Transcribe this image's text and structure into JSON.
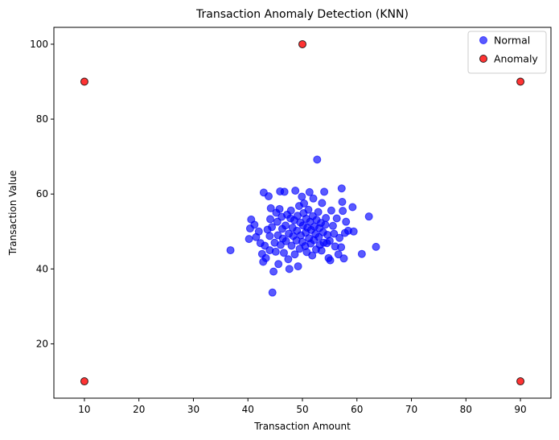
{
  "chart_data": {
    "type": "scatter",
    "title": "Transaction Anomaly Detection (KNN)",
    "xlabel": "Transaction Amount",
    "ylabel": "Transaction Value",
    "xlim": [
      4.4,
      95.6
    ],
    "ylim": [
      5.5,
      104.5
    ],
    "xticks": [
      10,
      20,
      30,
      40,
      50,
      60,
      70,
      80,
      90
    ],
    "yticks": [
      20,
      40,
      60,
      80,
      100
    ],
    "grid": false,
    "legend_position": "top-right",
    "series": [
      {
        "name": "Normal",
        "color": "#0000ff",
        "edge_color": "#0000ff",
        "opacity": 0.65,
        "points": [
          [
            36.8,
            45.0
          ],
          [
            40.2,
            48.0
          ],
          [
            40.4,
            50.8
          ],
          [
            40.6,
            53.2
          ],
          [
            41.2,
            51.8
          ],
          [
            41.5,
            48.5
          ],
          [
            42.0,
            50.0
          ],
          [
            42.3,
            46.9
          ],
          [
            42.6,
            44.0
          ],
          [
            42.8,
            41.9
          ],
          [
            42.9,
            60.4
          ],
          [
            43.1,
            46.2
          ],
          [
            43.3,
            42.9
          ],
          [
            43.6,
            50.5
          ],
          [
            43.8,
            59.4
          ],
          [
            44.0,
            45.0
          ],
          [
            44.0,
            48.8
          ],
          [
            44.1,
            53.3
          ],
          [
            44.2,
            56.2
          ],
          [
            44.4,
            51.2
          ],
          [
            44.5,
            33.7
          ],
          [
            44.7,
            39.3
          ],
          [
            44.9,
            47.0
          ],
          [
            45.1,
            44.6
          ],
          [
            45.2,
            55.0
          ],
          [
            45.4,
            52.6
          ],
          [
            45.5,
            49.0
          ],
          [
            45.6,
            41.3
          ],
          [
            45.8,
            56.0
          ],
          [
            45.9,
            60.7
          ],
          [
            46.0,
            46.4
          ],
          [
            46.2,
            53.9
          ],
          [
            46.3,
            50.7
          ],
          [
            46.4,
            48.1
          ],
          [
            46.6,
            44.3
          ],
          [
            46.7,
            60.6
          ],
          [
            46.9,
            51.6
          ],
          [
            47.0,
            47.4
          ],
          [
            47.2,
            54.5
          ],
          [
            47.4,
            42.6
          ],
          [
            47.5,
            49.4
          ],
          [
            47.6,
            40.0
          ],
          [
            47.8,
            53.5
          ],
          [
            47.9,
            55.6
          ],
          [
            48.0,
            46.2
          ],
          [
            48.2,
            51.0
          ],
          [
            48.3,
            48.8
          ],
          [
            48.5,
            53.0
          ],
          [
            48.6,
            43.9
          ],
          [
            48.7,
            60.9
          ],
          [
            48.9,
            47.6
          ],
          [
            49.0,
            50.2
          ],
          [
            49.1,
            54.2
          ],
          [
            49.2,
            40.7
          ],
          [
            49.4,
            56.8
          ],
          [
            49.5,
            45.4
          ],
          [
            49.6,
            52.4
          ],
          [
            49.7,
            49.0
          ],
          [
            49.9,
            59.3
          ],
          [
            50.0,
            47.2
          ],
          [
            50.1,
            51.6
          ],
          [
            50.2,
            54.9
          ],
          [
            50.3,
            57.5
          ],
          [
            50.5,
            46.1
          ],
          [
            50.6,
            49.7
          ],
          [
            50.7,
            53.4
          ],
          [
            50.8,
            44.5
          ],
          [
            50.9,
            51.0
          ],
          [
            51.1,
            55.8
          ],
          [
            51.2,
            48.2
          ],
          [
            51.3,
            60.5
          ],
          [
            51.4,
            52.6
          ],
          [
            51.5,
            46.8
          ],
          [
            51.6,
            50.4
          ],
          [
            51.8,
            43.6
          ],
          [
            51.9,
            54.1
          ],
          [
            52.0,
            58.8
          ],
          [
            52.1,
            47.7
          ],
          [
            52.2,
            51.3
          ],
          [
            52.4,
            49.3
          ],
          [
            52.5,
            45.2
          ],
          [
            52.6,
            53.1
          ],
          [
            52.7,
            69.2
          ],
          [
            52.9,
            55.2
          ],
          [
            53.0,
            48.5
          ],
          [
            53.1,
            50.9
          ],
          [
            53.2,
            46.4
          ],
          [
            53.4,
            52.3
          ],
          [
            53.5,
            44.9
          ],
          [
            53.6,
            57.6
          ],
          [
            53.8,
            49.8
          ],
          [
            53.9,
            47.0
          ],
          [
            54.0,
            60.6
          ],
          [
            54.2,
            51.8
          ],
          [
            54.3,
            53.6
          ],
          [
            54.5,
            46.9
          ],
          [
            54.6,
            49.1
          ],
          [
            54.8,
            42.9
          ],
          [
            55.0,
            47.5
          ],
          [
            55.1,
            42.3
          ],
          [
            55.3,
            55.6
          ],
          [
            55.6,
            51.5
          ],
          [
            55.8,
            49.4
          ],
          [
            56.0,
            46.0
          ],
          [
            56.3,
            53.5
          ],
          [
            56.6,
            43.9
          ],
          [
            56.8,
            48.3
          ],
          [
            57.1,
            45.8
          ],
          [
            57.2,
            61.5
          ],
          [
            57.3,
            57.9
          ],
          [
            57.4,
            55.5
          ],
          [
            57.6,
            42.8
          ],
          [
            57.8,
            49.6
          ],
          [
            58.0,
            52.6
          ],
          [
            58.4,
            50.2
          ],
          [
            59.2,
            56.5
          ],
          [
            59.4,
            50.0
          ],
          [
            60.9,
            44.0
          ],
          [
            62.2,
            54.0
          ],
          [
            63.5,
            45.9
          ]
        ]
      },
      {
        "name": "Anomaly",
        "color": "#ff0000",
        "edge_color": "#000000",
        "opacity": 0.8,
        "points": [
          [
            10,
            10
          ],
          [
            10,
            90
          ],
          [
            50,
            100
          ],
          [
            90,
            90
          ],
          [
            90,
            10
          ]
        ]
      }
    ]
  }
}
